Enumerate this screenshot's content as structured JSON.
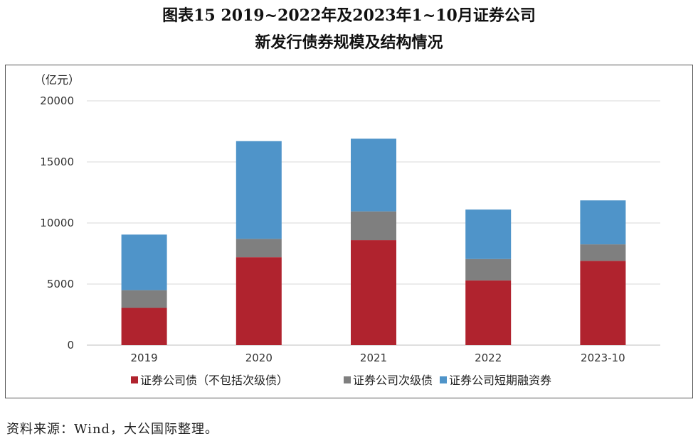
{
  "header": {
    "title_line1": "图表15 2019~2022年及2023年1~10月证券公司",
    "title_line2": "新发行债券规模及结构情况"
  },
  "footer": {
    "source": "资料来源：Wind，大公国际整理。"
  },
  "chart_data": {
    "type": "bar",
    "stacked": true,
    "unit_label": "（亿元）",
    "categories": [
      "2019",
      "2020",
      "2021",
      "2022",
      "2023-10"
    ],
    "ylim": [
      0,
      20000
    ],
    "yticks": [
      0,
      5000,
      10000,
      15000,
      20000
    ],
    "grid": true,
    "legend_position": "bottom",
    "series": [
      {
        "name": "证券公司债（不包括次级债）",
        "color": "#B0232E",
        "values": [
          3050,
          7200,
          8600,
          5300,
          6900
        ]
      },
      {
        "name": "证券公司次级债",
        "color": "#7F7F7F",
        "values": [
          1450,
          1500,
          2350,
          1750,
          1350
        ]
      },
      {
        "name": "证券公司短期融资券",
        "color": "#4F94C9",
        "values": [
          4550,
          8000,
          5950,
          4050,
          3600
        ]
      }
    ]
  }
}
